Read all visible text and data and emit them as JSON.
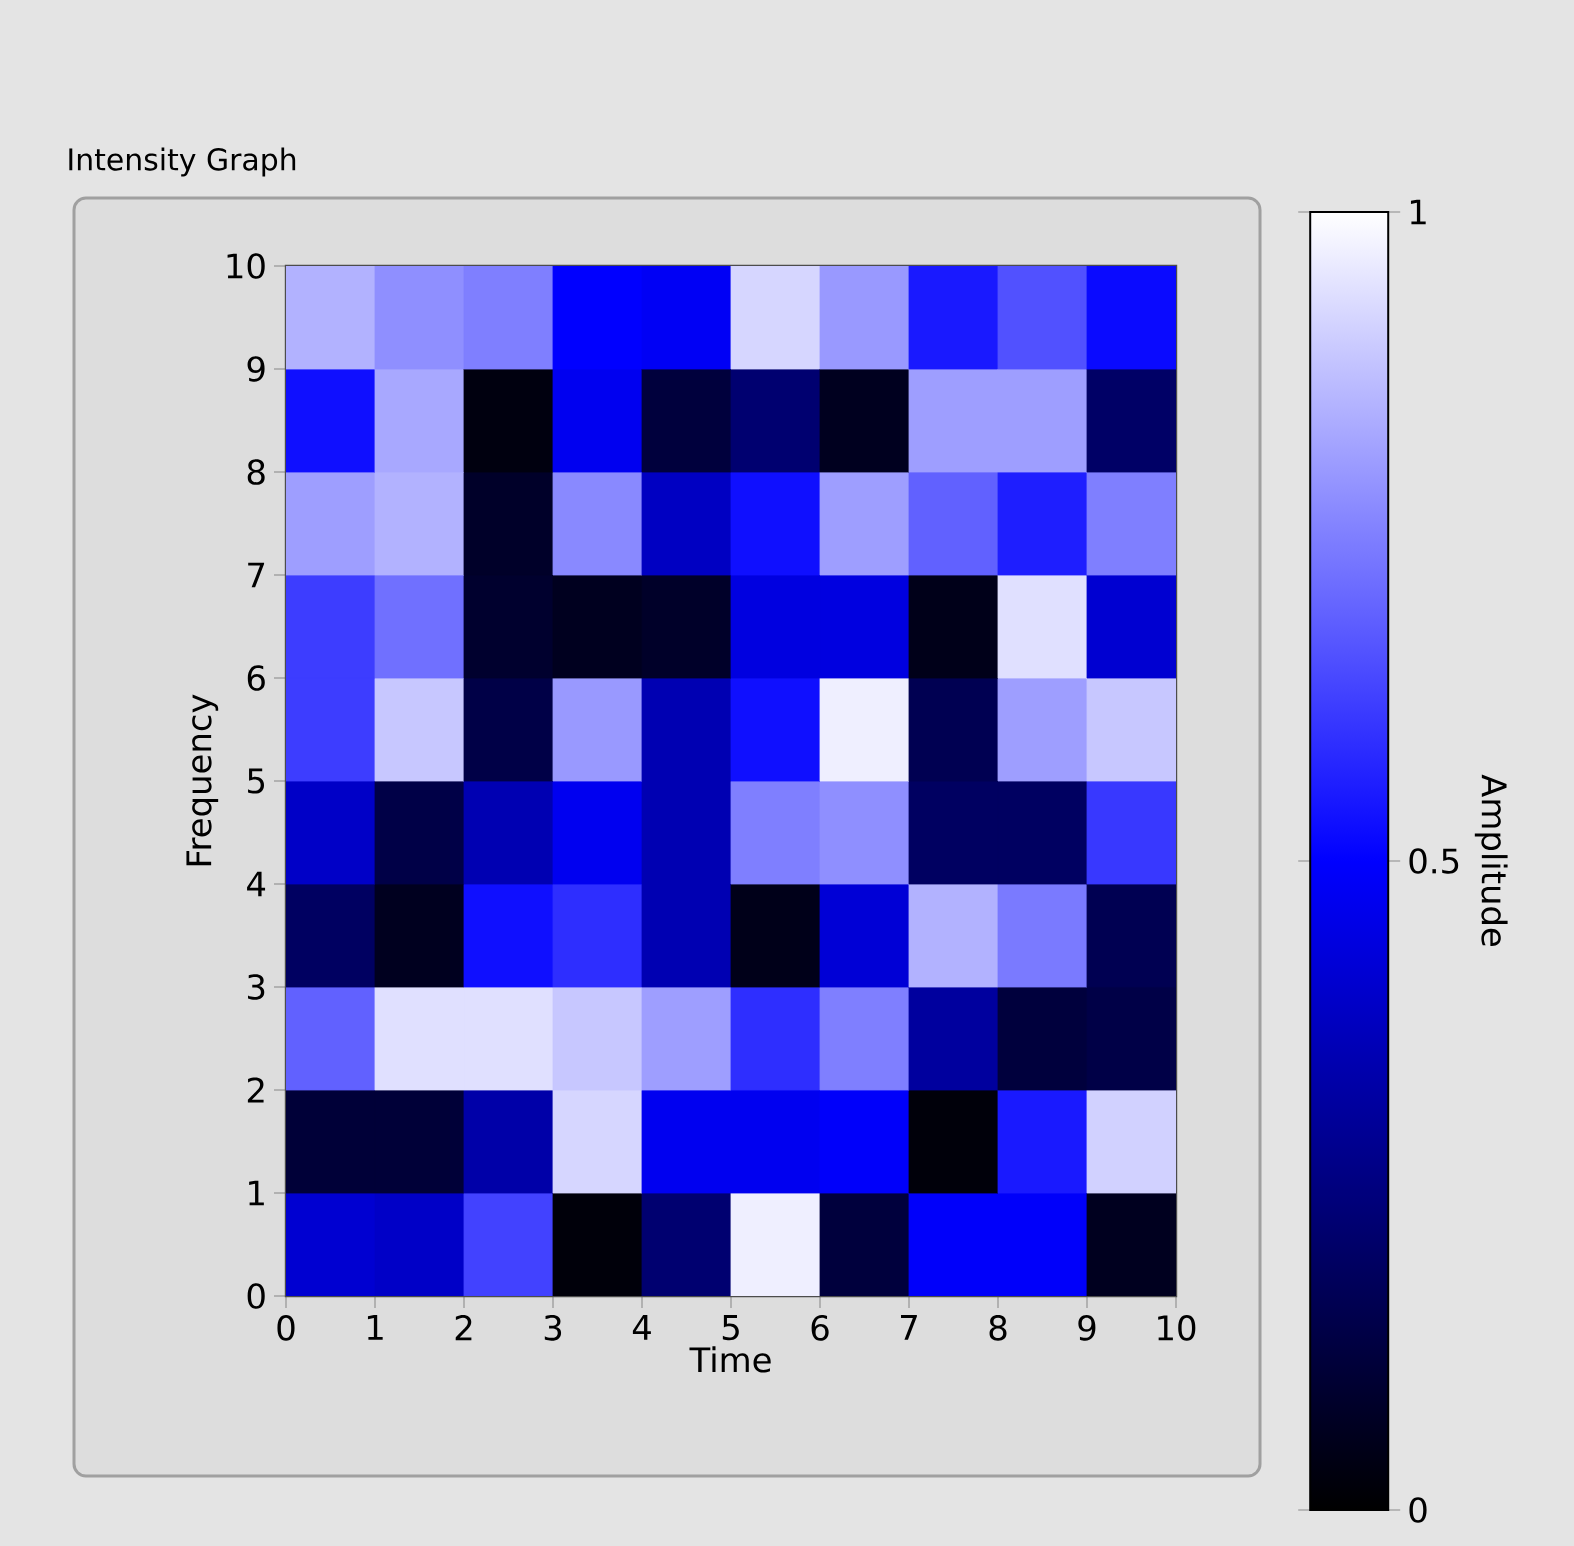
{
  "chart_data": {
    "type": "heatmap",
    "title": "Intensity Graph",
    "xlabel": "Time",
    "ylabel": "Frequency",
    "clabel": "Amplitude",
    "xlim": [
      0,
      10
    ],
    "ylim": [
      0,
      10
    ],
    "xticks": [
      0,
      1,
      2,
      3,
      4,
      5,
      6,
      7,
      8,
      9,
      10
    ],
    "yticks": [
      0,
      1,
      2,
      3,
      4,
      5,
      6,
      7,
      8,
      9,
      10
    ],
    "clim": [
      0,
      1
    ],
    "cticks": [
      0,
      0.5,
      1
    ],
    "cells": [
      [
        0.85,
        0.78,
        0.75,
        0.5,
        0.48,
        0.92,
        0.8,
        0.55,
        0.66,
        0.52
      ],
      [
        0.53,
        0.83,
        0.03,
        0.47,
        0.12,
        0.22,
        0.06,
        0.81,
        0.81,
        0.2
      ],
      [
        0.81,
        0.85,
        0.08,
        0.77,
        0.38,
        0.53,
        0.81,
        0.69,
        0.56,
        0.75
      ],
      [
        0.62,
        0.72,
        0.09,
        0.06,
        0.08,
        0.44,
        0.44,
        0.05,
        0.94,
        0.41
      ],
      [
        0.62,
        0.89,
        0.14,
        0.8,
        0.35,
        0.53,
        0.97,
        0.16,
        0.81,
        0.89
      ],
      [
        0.39,
        0.14,
        0.35,
        0.47,
        0.35,
        0.75,
        0.78,
        0.19,
        0.19,
        0.61
      ],
      [
        0.19,
        0.06,
        0.53,
        0.59,
        0.35,
        0.05,
        0.42,
        0.85,
        0.74,
        0.16
      ],
      [
        0.69,
        0.94,
        0.94,
        0.89,
        0.81,
        0.59,
        0.75,
        0.31,
        0.12,
        0.14
      ],
      [
        0.11,
        0.11,
        0.33,
        0.92,
        0.47,
        0.47,
        0.49,
        0.02,
        0.55,
        0.91
      ],
      [
        0.41,
        0.39,
        0.63,
        0.02,
        0.22,
        0.97,
        0.12,
        0.49,
        0.49,
        0.06
      ]
    ]
  }
}
